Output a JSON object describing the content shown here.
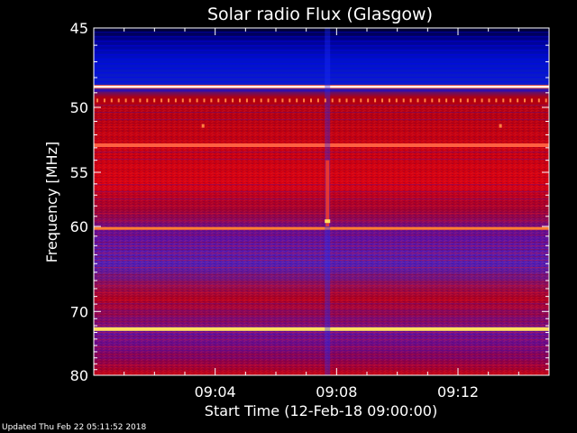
{
  "chart_data": {
    "type": "heatmap",
    "title": "Solar radio Flux (Glasgow)",
    "xlabel": "Start Time (12-Feb-18 09:00:00)",
    "ylabel": "Frequency [MHz]",
    "x_ticks": [
      "09:04",
      "09:08",
      "09:12"
    ],
    "x_tick_minutes": [
      4,
      8,
      12
    ],
    "x_range_minutes": [
      0,
      15
    ],
    "y_ticks": [
      "45",
      "50",
      "55",
      "60",
      "70",
      "80"
    ],
    "y_tick_values": [
      45,
      50,
      55,
      60,
      70,
      80
    ],
    "y_range": [
      45,
      80
    ],
    "y_scale": "inverted log",
    "colors": {
      "low": "#0000c0",
      "mid": "#c00000",
      "high": "#ffe060",
      "background": "#000000",
      "axes": "#ffffff"
    },
    "features": [
      {
        "kind": "bright horizontal line",
        "frequency_mhz": 48.6
      },
      {
        "kind": "bright horizontal line",
        "frequency_mhz": 52.8
      },
      {
        "kind": "horizontal line",
        "frequency_mhz": 60.2
      },
      {
        "kind": "bright horizontal line",
        "frequency_mhz": 72.5
      },
      {
        "kind": "vertical burst",
        "time_minute": 7.7
      }
    ]
  },
  "footer": {
    "updated": "Updated Thu Feb 22 05:11:52 2018"
  }
}
